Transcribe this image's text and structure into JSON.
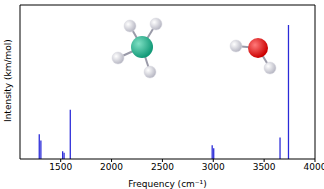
{
  "chart_data": {
    "type": "bar",
    "x_label": "Frequency (cm⁻¹)",
    "y_label": "Intensity (km/mol)",
    "x": [
      1290,
      1306,
      1520,
      1534,
      1595,
      2990,
      3005,
      3657,
      3740
    ],
    "values": [
      16,
      12,
      5,
      4,
      32,
      9,
      7,
      14,
      87
    ],
    "color": "#2a2ad8",
    "xlim": [
      1100,
      4000
    ],
    "xticks": [
      1500,
      2000,
      2500,
      3000,
      3500,
      4000
    ],
    "ylim": [
      0,
      100
    ],
    "tick_labels": "x",
    "grid": false
  }
}
